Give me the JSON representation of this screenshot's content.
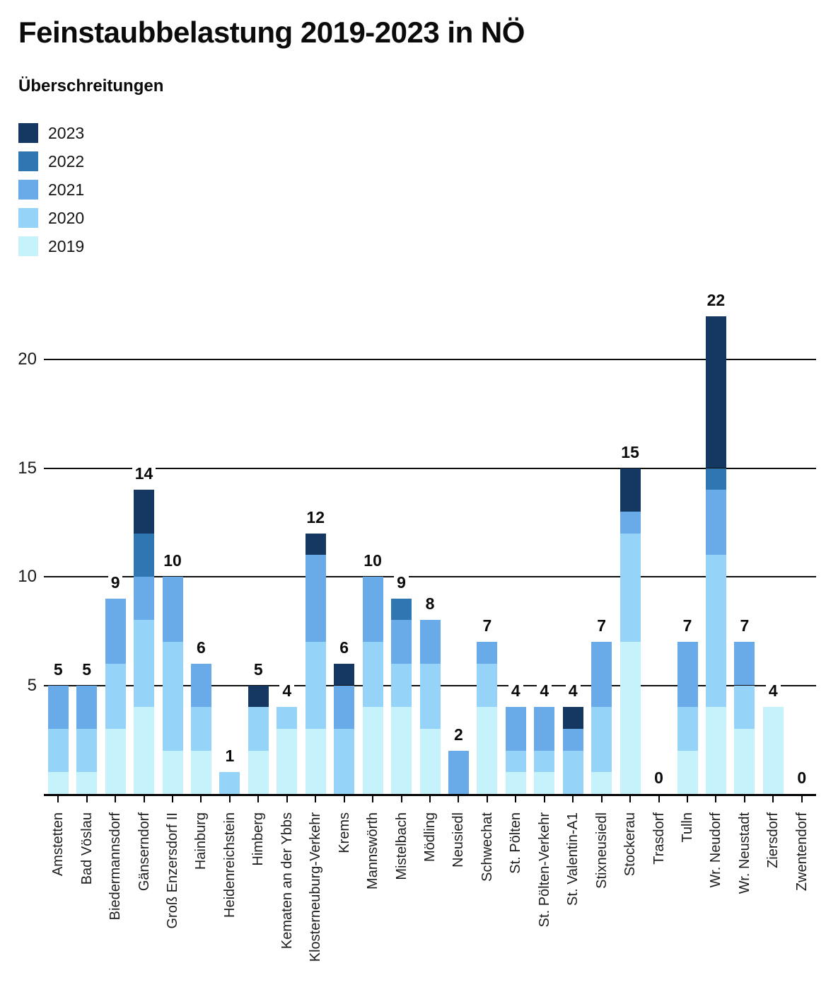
{
  "title": "Feinstaubbelastung 2019-2023 in NÖ",
  "subtitle": "Überschreitungen",
  "legend": [
    {
      "label": "2023",
      "color": "#143862"
    },
    {
      "label": "2022",
      "color": "#2e77b2"
    },
    {
      "label": "2021",
      "color": "#69abe9"
    },
    {
      "label": "2020",
      "color": "#95d3f9"
    },
    {
      "label": "2019",
      "color": "#c5f2fb"
    }
  ],
  "chart_data": {
    "type": "bar",
    "stacked": true,
    "title": "Feinstaubbelastung 2019-2023 in NÖ",
    "subtitle": "Überschreitungen",
    "grid": true,
    "legend_position": "top-left",
    "ylim": [
      0,
      23
    ],
    "yticks": [
      5,
      10,
      15,
      20
    ],
    "categories": [
      "Amstetten",
      "Bad Vöslau",
      "Biedermannsdorf",
      "Gänserndorf",
      "Groß Enzersdorf II",
      "Hainburg",
      "Heidenreichstein",
      "Himberg",
      "Kematen an der Ybbs",
      "Klosterneuburg-Verkehr",
      "Krems",
      "Mannswörth",
      "Mistelbach",
      "Mödling",
      "Neusiedl",
      "Schwechat",
      "St. Pölten",
      "St. Pölten-Verkehr",
      "St. Valentin-A1",
      "Stixneusiedl",
      "Stockerau",
      "Trasdorf",
      "Tulln",
      "Wr. Neudorf",
      "Wr. Neustadt",
      "Ziersdorf",
      "Zwentendorf"
    ],
    "totals": [
      5,
      5,
      9,
      14,
      10,
      6,
      1,
      5,
      4,
      12,
      6,
      10,
      9,
      8,
      2,
      7,
      4,
      4,
      4,
      7,
      15,
      0,
      7,
      22,
      7,
      4,
      0
    ],
    "series": [
      {
        "name": "2019",
        "color": "#c5f2fb",
        "values": [
          1,
          1,
          3,
          4,
          2,
          2,
          0,
          2,
          3,
          3,
          0,
          4,
          4,
          3,
          0,
          4,
          1,
          1,
          0,
          1,
          7,
          0,
          2,
          4,
          3,
          4,
          0
        ]
      },
      {
        "name": "2020",
        "color": "#95d3f9",
        "values": [
          2,
          2,
          3,
          4,
          5,
          2,
          1,
          2,
          1,
          4,
          3,
          3,
          2,
          3,
          0,
          2,
          1,
          1,
          2,
          3,
          5,
          0,
          2,
          7,
          2,
          0,
          0
        ]
      },
      {
        "name": "2021",
        "color": "#69abe9",
        "values": [
          2,
          2,
          3,
          2,
          3,
          2,
          0,
          0,
          0,
          4,
          2,
          3,
          2,
          2,
          2,
          1,
          2,
          2,
          1,
          3,
          1,
          0,
          3,
          3,
          2,
          0,
          0
        ]
      },
      {
        "name": "2022",
        "color": "#2e77b2",
        "values": [
          0,
          0,
          0,
          2,
          0,
          0,
          0,
          0,
          0,
          0,
          0,
          0,
          1,
          0,
          0,
          0,
          0,
          0,
          0,
          0,
          0,
          0,
          0,
          1,
          0,
          0,
          0
        ]
      },
      {
        "name": "2023",
        "color": "#143862",
        "values": [
          0,
          0,
          0,
          2,
          0,
          0,
          0,
          1,
          0,
          1,
          1,
          0,
          0,
          0,
          0,
          0,
          0,
          0,
          1,
          0,
          2,
          0,
          0,
          7,
          0,
          0,
          0
        ]
      }
    ]
  }
}
